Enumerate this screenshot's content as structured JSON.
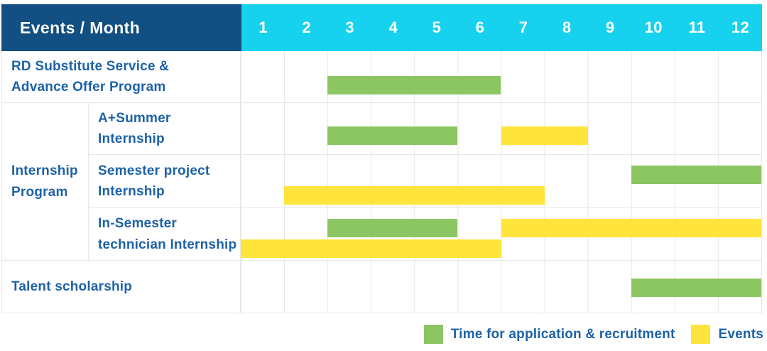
{
  "header": {
    "title": "Events / Month",
    "months": [
      "1",
      "2",
      "3",
      "4",
      "5",
      "6",
      "7",
      "8",
      "9",
      "10",
      "11",
      "12"
    ]
  },
  "colors": {
    "navy": "#124F82",
    "cyan": "#16D2EE",
    "green": "#8CC663",
    "yellow": "#FFE43C",
    "text_blue": "#1D62A6",
    "grid": "#E7E7E7",
    "header_text": "#FFFFFF"
  },
  "legend": [
    {
      "label": "Time for application & recruitment",
      "kind": "application",
      "color": "#8CC663"
    },
    {
      "label": "Events",
      "kind": "event",
      "color": "#FFE43C"
    }
  ],
  "chart_data": {
    "type": "gantt",
    "x_axis": {
      "label": "Month",
      "ticks": [
        1,
        2,
        3,
        4,
        5,
        6,
        7,
        8,
        9,
        10,
        11,
        12
      ]
    },
    "bar_kinds": {
      "application": "Time for application & recruitment",
      "event": "Events"
    },
    "rows": [
      {
        "group": null,
        "label": "RD Substitute Service &\nAdvance Offer Program",
        "bars": [
          {
            "kind": "application",
            "start": 3,
            "end": 6,
            "line": 0
          }
        ]
      },
      {
        "group": "Internship\nProgram",
        "label": "A+Summer\nInternship",
        "bars": [
          {
            "kind": "application",
            "start": 3,
            "end": 5,
            "line": 0
          },
          {
            "kind": "event",
            "start": 7,
            "end": 8,
            "line": 0
          }
        ]
      },
      {
        "group": "Internship\nProgram",
        "label": "Semester project\nInternship",
        "bars": [
          {
            "kind": "application",
            "start": 10,
            "end": 12,
            "line": 0
          },
          {
            "kind": "event",
            "start": 2,
            "end": 7,
            "line": 1
          }
        ]
      },
      {
        "group": "Internship\nProgram",
        "label": "In-Semester\ntechnician Internship",
        "bars": [
          {
            "kind": "application",
            "start": 3,
            "end": 5,
            "line": 0
          },
          {
            "kind": "event",
            "start": 7,
            "end": 12,
            "line": 0
          },
          {
            "kind": "event",
            "start": 1,
            "end": 6,
            "line": 1
          }
        ]
      },
      {
        "group": null,
        "label": "Talent scholarship",
        "bars": [
          {
            "kind": "application",
            "start": 10,
            "end": 12,
            "line": 0
          }
        ]
      }
    ]
  }
}
